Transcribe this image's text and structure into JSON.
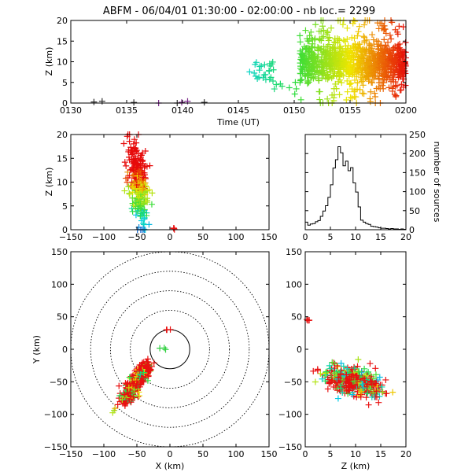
{
  "title": "ABFM - 06/04/01 01:30:00 - 02:00:00 - nb loc.=   2299",
  "panels": {
    "time_z": {
      "xlabel": "Time (UT)",
      "ylabel": "Z (km)",
      "xticks": [
        "0130",
        "0135",
        "0140",
        "0145",
        "0150",
        "0155",
        "0200"
      ],
      "yticks": [
        "0",
        "5",
        "10",
        "15",
        "20"
      ]
    },
    "x_z": {
      "ylabel": "Z (km)",
      "xticks": [
        "−150",
        "−100",
        "−50",
        "0",
        "50",
        "100",
        "150"
      ],
      "yticks": [
        "0",
        "5",
        "10",
        "15",
        "20"
      ]
    },
    "histogram": {
      "ylabel": "number of sources",
      "xticks": [
        "0",
        "5",
        "10",
        "15",
        "20"
      ],
      "yticks": [
        "0",
        "50",
        "100",
        "150",
        "200",
        "250"
      ]
    },
    "x_y": {
      "xlabel": "X (km)",
      "ylabel": "Y (km)",
      "xticks": [
        "−150",
        "−100",
        "−50",
        "0",
        "50",
        "100",
        "150"
      ],
      "yticks": [
        "−150",
        "−100",
        "−50",
        "0",
        "50",
        "100",
        "150"
      ]
    },
    "z_y": {
      "xlabel": "Z (km)",
      "xticks": [
        "0",
        "5",
        "10",
        "15",
        "20"
      ],
      "yticks": [
        "−150",
        "−100",
        "−50",
        "0",
        "50",
        "100",
        "150"
      ]
    }
  },
  "chart_data": [
    {
      "type": "scatter",
      "panel": "time_z",
      "xlabel": "Time (UT)",
      "ylabel": "Z (km)",
      "xlim": [
        90,
        120
      ],
      "ylim": [
        0,
        20
      ],
      "color_by_time": true,
      "clusters": [
        {
          "t_start": 90.0,
          "t_end": 102.0,
          "z_center": 0.3,
          "z_spread": 0.3,
          "count": 8
        },
        {
          "t_start": 106.0,
          "t_end": 108.2,
          "z_center": 8.0,
          "z_spread": 1.5,
          "count": 25
        },
        {
          "t_start": 108.2,
          "t_end": 110.5,
          "z_center": 4.0,
          "z_spread": 1.5,
          "count": 8
        },
        {
          "t_start": 110.5,
          "t_end": 120.0,
          "z_center": 9.5,
          "z_spread": 2.5,
          "count": 900
        },
        {
          "t_start": 111.0,
          "t_end": 120.0,
          "z_center": 14.0,
          "z_spread": 4.0,
          "count": 120
        },
        {
          "t_start": 112.0,
          "t_end": 120.0,
          "z_center": 1.5,
          "z_spread": 1.5,
          "count": 35
        }
      ]
    },
    {
      "type": "scatter",
      "panel": "x_z",
      "ylabel": "Z (km)",
      "xlim": [
        -150,
        150
      ],
      "ylim": [
        0,
        20
      ],
      "clusters": [
        {
          "x_center": -48,
          "x_spread": 7,
          "z_center": 10,
          "z_spread": 4,
          "count": 320
        },
        {
          "x_center": -2,
          "x_spread": 1,
          "z_center": 0.2,
          "z_spread": 0.2,
          "count": 4
        }
      ]
    },
    {
      "type": "bar",
      "panel": "histogram",
      "ylabel": "number of sources",
      "xlim": [
        0,
        20
      ],
      "ylim": [
        0,
        250
      ],
      "bin_width": 0.5,
      "bin_start": 0,
      "values": [
        20,
        12,
        15,
        16,
        21,
        24,
        35,
        49,
        63,
        85,
        118,
        162,
        184,
        218,
        202,
        168,
        180,
        155,
        163,
        123,
        99,
        60,
        25,
        20,
        16,
        14,
        9,
        8,
        7,
        5,
        4,
        4,
        3,
        2,
        3,
        2,
        2,
        1,
        2,
        1
      ]
    },
    {
      "type": "scatter",
      "panel": "x_y",
      "xlabel": "X (km)",
      "ylabel": "Y (km)",
      "xlim": [
        -150,
        150
      ],
      "ylim": [
        -150,
        150
      ],
      "range_rings_km": [
        30,
        60,
        90,
        120,
        150
      ],
      "clusters": [
        {
          "x_from": -68,
          "y_from": -80,
          "x_to": -35,
          "y_to": -25,
          "spread": 5,
          "count": 420
        },
        {
          "x_center": -10,
          "y_center": 0,
          "spread": 2,
          "count": 3
        },
        {
          "x_center": -2,
          "y_center": 30,
          "spread": 1.5,
          "count": 3
        },
        {
          "x_center": -85,
          "y_center": -92,
          "spread": 2,
          "count": 3
        }
      ]
    },
    {
      "type": "scatter",
      "panel": "z_y",
      "xlabel": "Z (km)",
      "xlim": [
        0,
        20
      ],
      "ylim": [
        -150,
        150
      ],
      "clusters": [
        {
          "z_center": 9.5,
          "z_spread": 2.8,
          "y_center": -50,
          "y_spread": 10,
          "count": 420
        },
        {
          "z_center": 0.5,
          "z_spread": 0.2,
          "y_center": 30,
          "y_spread": 1,
          "count": 4
        }
      ]
    }
  ]
}
